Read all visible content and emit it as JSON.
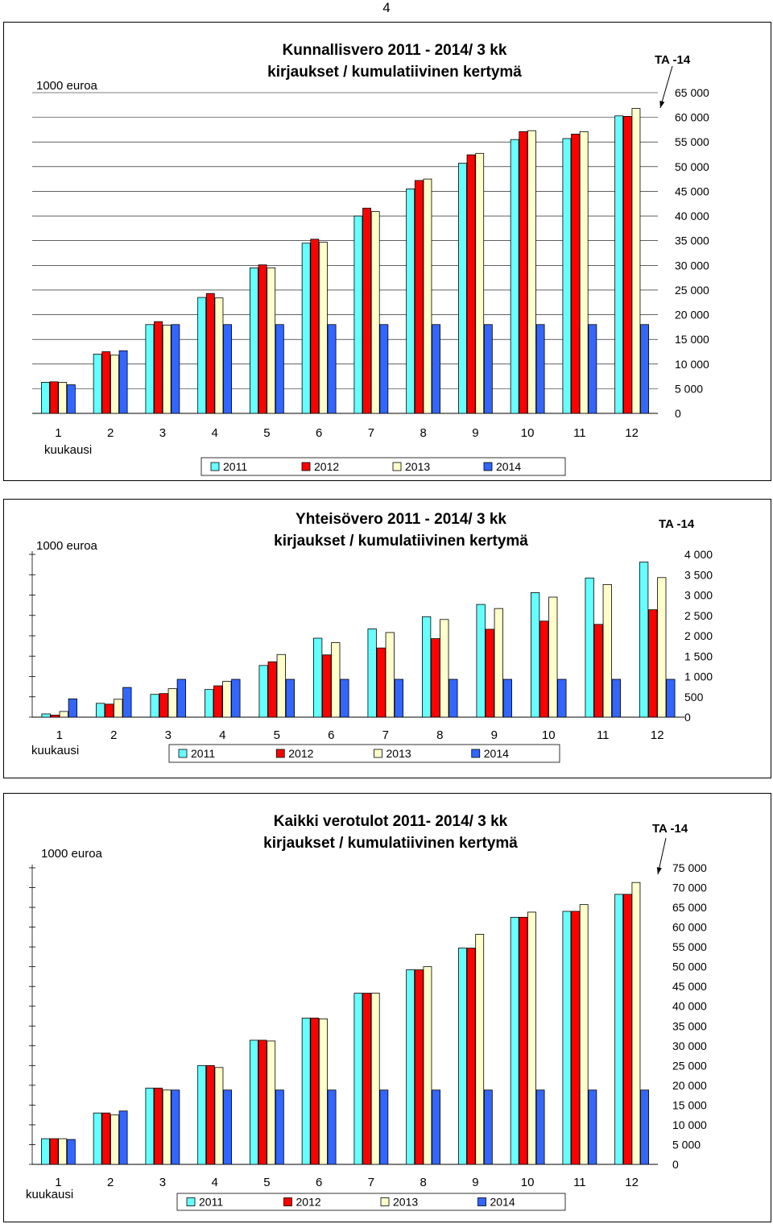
{
  "page_number": "4",
  "colors": {
    "2011": "#66FFFF",
    "2012": "#FF0000",
    "2013": "#FFFFCC",
    "2014": "#3366FF"
  },
  "chart_data": [
    {
      "type": "bar",
      "title_line1": "Kunnallisvero 2011 - 2014/ 3 kk",
      "title_line2": "kirjaukset / kumulatiivinen kertymä",
      "ylabel": "1000 euroa",
      "xlabel": "kuukausi",
      "ta_label": "TA -14",
      "categories": [
        "1",
        "2",
        "3",
        "4",
        "5",
        "6",
        "7",
        "8",
        "9",
        "10",
        "11",
        "12"
      ],
      "ylim": [
        0,
        65000
      ],
      "yticks": [
        0,
        5000,
        10000,
        15000,
        20000,
        25000,
        30000,
        35000,
        40000,
        45000,
        50000,
        55000,
        60000,
        65000
      ],
      "ytick_labels": [
        "0",
        "5 000",
        "10 000",
        "15 000",
        "20 000",
        "25 000",
        "30 000",
        "35 000",
        "40 000",
        "45 000",
        "50 000",
        "55 000",
        "60 000",
        "65 000"
      ],
      "series": [
        {
          "name": "2011",
          "values": [
            6300,
            12000,
            18000,
            23500,
            29500,
            34500,
            40000,
            45500,
            50700,
            55500,
            55700,
            60300
          ]
        },
        {
          "name": "2012",
          "values": [
            6400,
            12500,
            18600,
            24300,
            30100,
            35300,
            41600,
            47200,
            52400,
            57100,
            56600,
            60200
          ]
        },
        {
          "name": "2013",
          "values": [
            6300,
            11800,
            17900,
            23400,
            29500,
            34700,
            40900,
            47500,
            52700,
            57300,
            57100,
            61800
          ]
        },
        {
          "name": "2014",
          "values": [
            5800,
            12700,
            18000,
            18000,
            18000,
            18000,
            18000,
            18000,
            18000,
            18000,
            18000,
            18000
          ]
        }
      ],
      "legend": [
        "2011",
        "2012",
        "2013",
        "2014"
      ]
    },
    {
      "type": "bar",
      "title_line1": "Yhteisövero 2011 - 2014/ 3 kk",
      "title_line2": "kirjaukset / kumulatiivinen kertymä",
      "ylabel": "1000 euroa",
      "xlabel": "kuukausi",
      "ta_label": "TA -14",
      "categories": [
        "1",
        "2",
        "3",
        "4",
        "5",
        "6",
        "7",
        "8",
        "9",
        "10",
        "11",
        "12"
      ],
      "ylim": [
        0,
        4000
      ],
      "yticks": [
        0,
        500,
        1000,
        1500,
        2000,
        2500,
        3000,
        3500,
        4000
      ],
      "ytick_labels": [
        "0",
        "500",
        "1 000",
        "1 500",
        "2 000",
        "2 500",
        "3 000",
        "3 500",
        "4 000"
      ],
      "series": [
        {
          "name": "2011",
          "values": [
            80,
            340,
            560,
            680,
            1270,
            1940,
            2170,
            2470,
            2770,
            3060,
            3420,
            3810
          ]
        },
        {
          "name": "2012",
          "values": [
            50,
            320,
            580,
            770,
            1360,
            1530,
            1700,
            1930,
            2160,
            2360,
            2280,
            2640
          ]
        },
        {
          "name": "2013",
          "values": [
            140,
            440,
            700,
            880,
            1540,
            1830,
            2080,
            2400,
            2670,
            2950,
            3260,
            3430
          ]
        },
        {
          "name": "2014",
          "values": [
            450,
            730,
            930,
            930,
            930,
            930,
            930,
            930,
            930,
            930,
            930,
            930
          ]
        }
      ],
      "legend": [
        "2011",
        "2012",
        "2013",
        "2014"
      ]
    },
    {
      "type": "bar",
      "title_line1": "Kaikki verotulot 2011- 2014/  3 kk",
      "title_line2": "kirjaukset / kumulatiivinen kertymä",
      "ylabel": "1000 euroa",
      "xlabel": "kuukausi",
      "ta_label": "TA -14",
      "categories": [
        "1",
        "2",
        "3",
        "4",
        "5",
        "6",
        "7",
        "8",
        "9",
        "10",
        "11",
        "12"
      ],
      "ylim": [
        0,
        75000
      ],
      "yticks": [
        0,
        5000,
        10000,
        15000,
        20000,
        25000,
        30000,
        35000,
        40000,
        45000,
        50000,
        55000,
        60000,
        65000,
        70000,
        75000
      ],
      "ytick_labels": [
        "0",
        "5 000",
        "10 000",
        "15 000",
        "20 000",
        "25 000",
        "30 000",
        "35 000",
        "40 000",
        "45 000",
        "50 000",
        "55 000",
        "60 000",
        "65 000",
        "70 000",
        "75 000"
      ],
      "series": [
        {
          "name": "2011",
          "values": [
            6500,
            13000,
            19300,
            25000,
            31400,
            37000,
            43300,
            49200,
            54700,
            62500,
            64000,
            68300
          ]
        },
        {
          "name": "2012",
          "values": [
            6500,
            13000,
            19300,
            25000,
            31400,
            37000,
            43300,
            49200,
            54700,
            62500,
            64000,
            68300
          ]
        },
        {
          "name": "2013",
          "values": [
            6500,
            12500,
            18800,
            24500,
            31200,
            36800,
            43300,
            50000,
            58200,
            63800,
            65700,
            71300
          ]
        },
        {
          "name": "2014",
          "values": [
            6300,
            13500,
            18800,
            18800,
            18800,
            18800,
            18800,
            18800,
            18800,
            18800,
            18800,
            18800
          ]
        }
      ],
      "legend": [
        "2011",
        "2012",
        "2013",
        "2014"
      ]
    }
  ]
}
